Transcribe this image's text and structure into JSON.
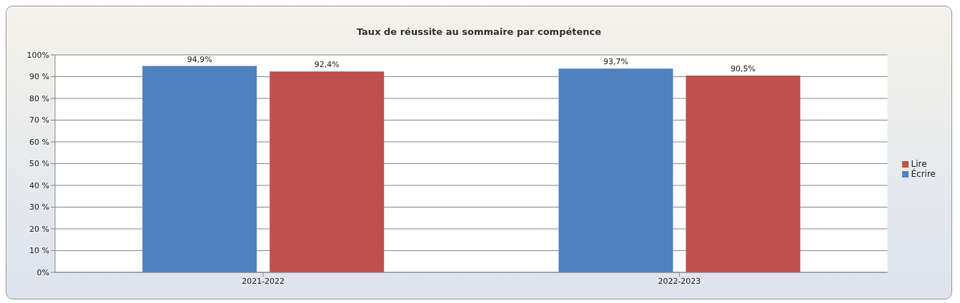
{
  "chart_data": {
    "type": "bar",
    "title": "Taux de réussite au sommaire par compétence",
    "categories": [
      "2021-2022",
      "2022-2023"
    ],
    "series": [
      {
        "name": "Écrire",
        "color": "#4f81bd",
        "values": [
          94.9,
          93.7
        ],
        "value_labels": [
          "94,9%",
          "93,7%"
        ]
      },
      {
        "name": "Lire",
        "color": "#c0504d",
        "values": [
          92.4,
          90.5
        ],
        "value_labels": [
          "92,4%",
          "90,5%"
        ]
      }
    ],
    "ylim": [
      0,
      100
    ],
    "yticks": [
      {
        "value": 0,
        "label": "0%"
      },
      {
        "value": 10,
        "label": "10 %"
      },
      {
        "value": 20,
        "label": "20 %"
      },
      {
        "value": 30,
        "label": "30 %"
      },
      {
        "value": 40,
        "label": "40 %"
      },
      {
        "value": 50,
        "label": "50 %"
      },
      {
        "value": 60,
        "label": "60 %"
      },
      {
        "value": 70,
        "label": "70 %"
      },
      {
        "value": 80,
        "label": "80 %"
      },
      {
        "value": 90,
        "label": "90 %"
      },
      {
        "value": 100,
        "label": "100%"
      }
    ],
    "grid": "y",
    "legend": "right"
  }
}
